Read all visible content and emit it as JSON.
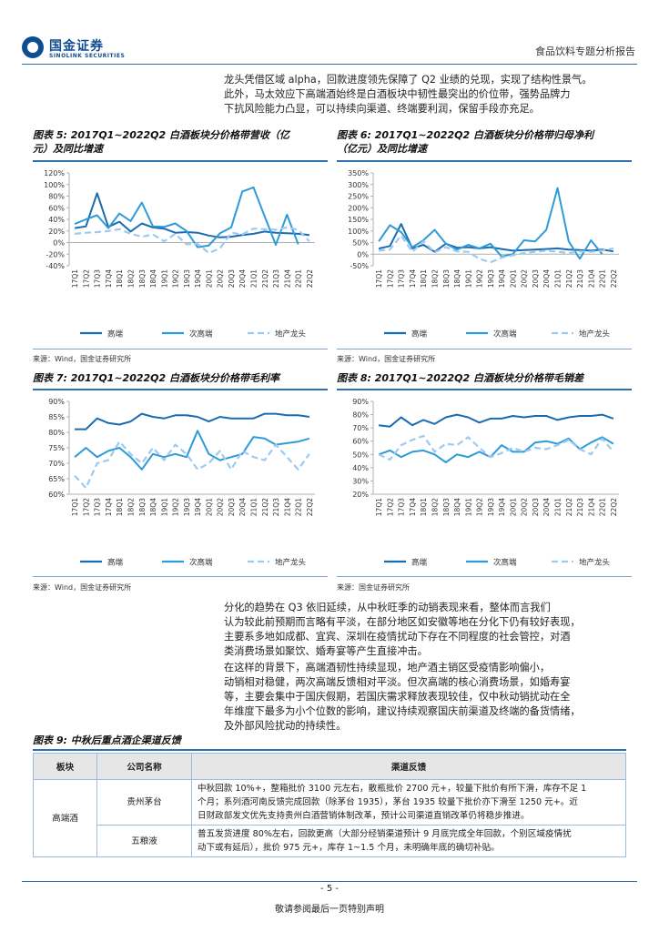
{
  "header": {
    "logo_cn": "国金证券",
    "logo_en": "SINOLINK SECURITIES",
    "report_type": "食品饮料专题分析报告"
  },
  "intro": {
    "lines": [
      "龙头凭借区域 alpha，回款进度领先保障了 Q2 业绩的兑现，实现了结构性景气。",
      "此外，马太效应下高端酒始终是白酒板块中韧性最突出的价位带，强势品牌力",
      "下抗风险能力凸显，可以持续向渠道、终端要利润，保留手段亦充足。"
    ]
  },
  "colors": {
    "gao": "#1b6bb0",
    "ci": "#2e9bd9",
    "di": "#9dcaf0",
    "accent": "#2d6fb3"
  },
  "figures": [
    {
      "title_line1": "图表 5:  2017Q1~2022Q2 白酒板块分价格带营收（亿",
      "title_line2": "元）及同比增速",
      "source": "来源：Wind，国金证券研究所"
    },
    {
      "title_line1": "图表 6:  2017Q1~2022Q2 白酒板块分价格带归母净利",
      "title_line2": "（亿元）及同比增速",
      "source": "来源：Wind，国金证券研究所"
    },
    {
      "title_line1": "图表 7:  2017Q1~2022Q2 白酒板块分价格带毛利率",
      "title_line2": "",
      "source": "来源：Wind，国金证券研究所"
    },
    {
      "title_line1": "图表 8:  2017Q1~2022Q2 白酒板块分价格带毛销差",
      "title_line2": "",
      "source": "来源：国金证券研究所"
    }
  ],
  "chart_data": [
    {
      "type": "line",
      "categories": [
        "17Q1",
        "17Q2",
        "17Q3",
        "17Q4",
        "18Q1",
        "18Q2",
        "18Q3",
        "18Q4",
        "19Q1",
        "19Q2",
        "19Q3",
        "19Q4",
        "20Q1",
        "20Q2",
        "20Q3",
        "20Q4",
        "21Q1",
        "21Q2",
        "21Q3",
        "21Q4",
        "22Q1",
        "22Q2"
      ],
      "ylim": [
        -40,
        120
      ],
      "yticks": [
        "-40%",
        "-20%",
        "0%",
        "20%",
        "40%",
        "60%",
        "80%",
        "100%",
        "120%"
      ],
      "legend_position": "bottom",
      "series": [
        {
          "name": "高端",
          "values": [
            25,
            28,
            85,
            27,
            36,
            19,
            33,
            26,
            24,
            17,
            18,
            17,
            12,
            9,
            10,
            13,
            15,
            19,
            17,
            16,
            15,
            13
          ]
        },
        {
          "name": "次高端",
          "values": [
            32,
            40,
            47,
            25,
            50,
            37,
            69,
            28,
            27,
            33,
            20,
            -8,
            -5,
            16,
            26,
            88,
            95,
            45,
            -4,
            48,
            -3,
            null
          ]
        },
        {
          "name": "地产龙头",
          "values": [
            15,
            17,
            18,
            20,
            23,
            15,
            10,
            14,
            2,
            15,
            -3,
            -2,
            -18,
            -10,
            17,
            14,
            24,
            23,
            22,
            26,
            22,
            2
          ]
        }
      ]
    },
    {
      "type": "line",
      "categories": [
        "17Q1",
        "17Q2",
        "17Q3",
        "17Q4",
        "18Q1",
        "18Q2",
        "18Q3",
        "18Q4",
        "19Q1",
        "19Q2",
        "19Q3",
        "19Q4",
        "20Q1",
        "20Q2",
        "20Q3",
        "20Q4",
        "21Q1",
        "21Q2",
        "21Q3",
        "21Q4",
        "22Q1",
        "22Q2"
      ],
      "ylim": [
        -50,
        350
      ],
      "yticks": [
        "-50%",
        "0%",
        "50%",
        "100%",
        "150%",
        "200%",
        "250%",
        "300%",
        "350%"
      ],
      "legend_position": "bottom",
      "series": [
        {
          "name": "高端",
          "values": [
            24,
            35,
            130,
            25,
            40,
            10,
            45,
            28,
            30,
            25,
            30,
            22,
            15,
            18,
            20,
            22,
            25,
            20,
            18,
            15,
            20,
            12
          ]
        },
        {
          "name": "次高端",
          "values": [
            55,
            125,
            95,
            30,
            60,
            105,
            45,
            20,
            40,
            25,
            45,
            -10,
            0,
            60,
            55,
            105,
            285,
            55,
            -20,
            60,
            0,
            null
          ]
        },
        {
          "name": "地产龙头",
          "values": [
            15,
            20,
            80,
            10,
            55,
            8,
            30,
            12,
            10,
            -20,
            -35,
            -15,
            -5,
            5,
            10,
            15,
            10,
            5,
            12,
            10,
            15,
            25
          ]
        }
      ]
    },
    {
      "type": "line",
      "categories": [
        "17Q1",
        "17Q2",
        "17Q3",
        "17Q4",
        "18Q1",
        "18Q2",
        "18Q3",
        "18Q4",
        "19Q1",
        "19Q2",
        "19Q3",
        "19Q4",
        "20Q1",
        "20Q2",
        "20Q3",
        "20Q4",
        "21Q1",
        "21Q2",
        "21Q3",
        "21Q4",
        "22Q1",
        "22Q2"
      ],
      "ylim": [
        60,
        90
      ],
      "yticks": [
        "60%",
        "65%",
        "70%",
        "75%",
        "80%",
        "85%",
        "90%"
      ],
      "legend_position": "bottom",
      "series": [
        {
          "name": "高端",
          "values": [
            81,
            81,
            84.5,
            83,
            82.5,
            83.5,
            86,
            85,
            84.5,
            85.5,
            85.5,
            85,
            83.5,
            85,
            84.5,
            84.5,
            84.5,
            86,
            86,
            85.5,
            85.5,
            85
          ]
        },
        {
          "name": "次高端",
          "values": [
            72,
            75,
            72,
            74,
            75,
            72,
            68,
            73,
            72,
            73,
            72,
            80.5,
            73,
            71,
            72,
            73,
            78.5,
            78,
            76,
            76.5,
            77,
            78
          ]
        },
        {
          "name": "地产龙头",
          "values": [
            66,
            62,
            70,
            71,
            77,
            73,
            70,
            75,
            71,
            76,
            73,
            68,
            70,
            74,
            68,
            74,
            72,
            71,
            76,
            72,
            68,
            73
          ]
        }
      ]
    },
    {
      "type": "line",
      "categories": [
        "17Q1",
        "17Q2",
        "17Q3",
        "17Q4",
        "18Q1",
        "18Q2",
        "18Q3",
        "18Q4",
        "19Q1",
        "19Q2",
        "19Q3",
        "19Q4",
        "20Q1",
        "20Q2",
        "20Q3",
        "20Q4",
        "21Q1",
        "21Q2",
        "21Q3",
        "21Q4",
        "22Q1",
        "22Q2"
      ],
      "ylim": [
        20,
        90
      ],
      "yticks": [
        "20%",
        "30%",
        "40%",
        "50%",
        "60%",
        "70%",
        "80%",
        "90%"
      ],
      "legend_position": "bottom",
      "series": [
        {
          "name": "高端",
          "values": [
            72,
            71,
            78,
            72,
            76,
            73,
            78,
            80,
            78,
            74,
            77,
            77,
            79,
            78,
            79,
            79,
            76,
            78,
            79,
            79,
            80,
            77
          ]
        },
        {
          "name": "次高端",
          "values": [
            50,
            53,
            48,
            52,
            53,
            50,
            44,
            50,
            48,
            52,
            48,
            57,
            52,
            52,
            59,
            60,
            58,
            62,
            54,
            59,
            63,
            58
          ]
        },
        {
          "name": "地产龙头",
          "values": [
            50,
            46,
            57,
            61,
            64,
            52,
            58,
            57,
            63,
            55,
            48,
            51,
            55,
            52,
            55,
            54,
            57,
            61,
            54,
            50,
            62,
            52
          ]
        }
      ]
    }
  ],
  "body": {
    "para1": [
      "分化的趋势在 Q3 依旧延续，从中秋旺季的动销表现来看，整体而言我们",
      "认为较此前预期而言略有平淡，在部分地区如安徽等地在分化下仍有较好表现，",
      "主要系多地如成都、宜宾、深圳在疫情扰动下存在不同程度的社会管控，对酒",
      "类消费场景如聚饮、婚寿宴等产生直接冲击。"
    ],
    "para2": [
      "在这样的背景下，高端酒韧性持续显现，地产酒主销区受疫情影响偏小，",
      "动销相对稳健，两次高端反馈相对平淡。但次高端的核心消费场景，如婚寿宴",
      "等，主要会集中于国庆假期，若国庆需求释放表现较佳，仅中秋动销扰动在全",
      "年维度下最多为小个位数的影响，建议持续观察国庆前渠道及终端的备货情绪，",
      "及外部风险扰动的持续性。"
    ]
  },
  "table": {
    "title": "图表 9:  中秋后重点酒企渠道反馈",
    "headers": [
      "板块",
      "公司名称",
      "渠道反馈"
    ],
    "segment": "高端酒",
    "rows": [
      {
        "company": "贵州茅台",
        "feedback": [
          "中秋回款 10%+，整箱批价 3100 元左右，散瓶批价 2700 元+，较量下批价有所下滑，库存不足 1",
          "个月；系列酒河南反馈完成回款（除茅台 1935），茅台 1935 较量下批价亦下滑至 1250 元+。近",
          "日财政部发文优先支持贵州白酒营销体制改革，预计公司渠道直销改革仍将稳步推进。"
        ]
      },
      {
        "company": "五粮液",
        "feedback": [
          "普五发货进度 80%左右，回款更高（大部分经销渠道预计 9 月底完成全年回款，个别区域疫情扰",
          "动下或有延后），批价 975 元+，库存 1~1.5 个月，未明确年底的确切补贴。"
        ]
      }
    ]
  },
  "footer": {
    "page": "- 5 -",
    "disclaimer": "敬请参阅最后一页特别声明"
  }
}
